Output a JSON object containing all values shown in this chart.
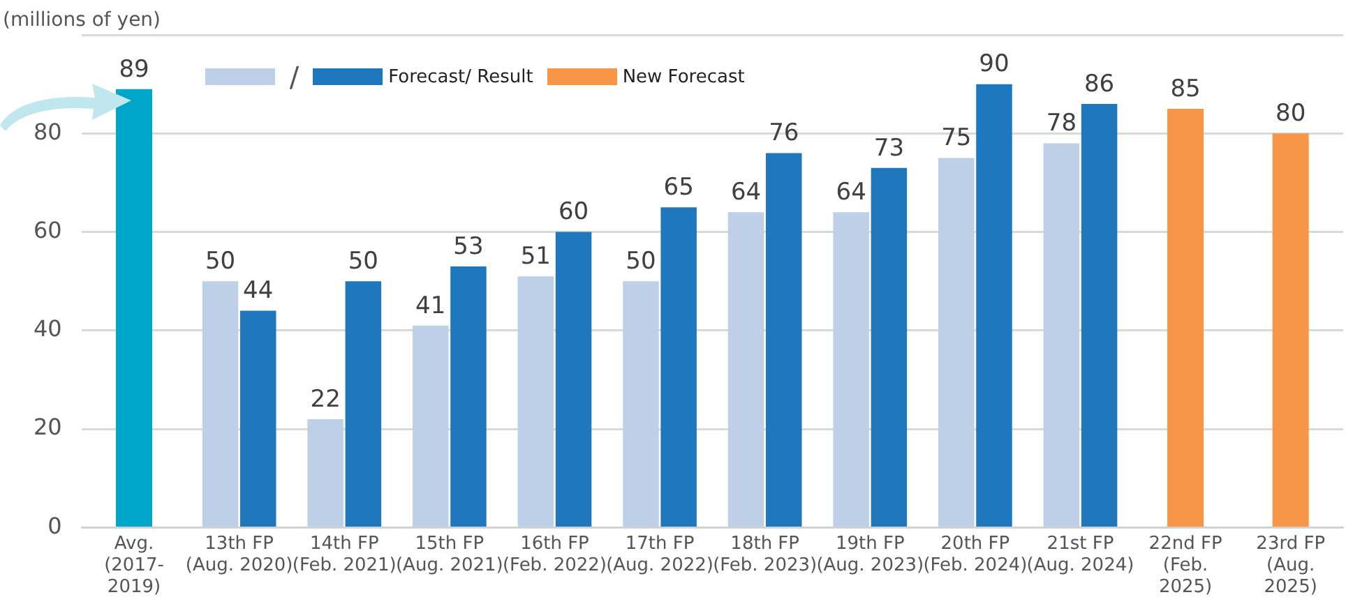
{
  "chart_data": {
    "type": "bar",
    "ylabel": "(millions of yen)",
    "categories": [
      "Avg. (2017-2019)",
      "13th FP (Aug. 2020)",
      "14th FP (Feb. 2021)",
      "15th FP (Aug. 2021)",
      "16th FP (Feb. 2022)",
      "17th FP (Aug. 2022)",
      "18th FP (Feb. 2023)",
      "19th FP (Aug. 2023)",
      "20th FP (Feb. 2024)",
      "21st FP (Aug. 2024)",
      "22nd FP (Feb. 2025)",
      "23rd FP (Aug. 2025)"
    ],
    "series": [
      {
        "color": "#00a6c8",
        "values": [
          89,
          null,
          null,
          null,
          null,
          null,
          null,
          null,
          null,
          null,
          null,
          null
        ]
      },
      {
        "color": "#bed0e8",
        "values": [
          null,
          50,
          22,
          41,
          51,
          50,
          64,
          64,
          75,
          78,
          null,
          null
        ]
      },
      {
        "name": "Forecast/ Result",
        "color": "#1f78bd",
        "values": [
          null,
          44,
          50,
          53,
          60,
          65,
          76,
          73,
          90,
          86,
          null,
          null
        ]
      },
      {
        "name": "New Forecast",
        "color": "#f79646",
        "values": [
          null,
          null,
          null,
          null,
          null,
          null,
          null,
          null,
          null,
          null,
          85,
          80
        ]
      }
    ],
    "annotations": [
      "/"
    ],
    "ylim": [
      0,
      100
    ],
    "yticks": [
      0,
      20,
      40,
      60,
      80,
      {
        "value": 100,
        "label": null
      }
    ],
    "grid": "y",
    "legend": "top left",
    "data_labels": true
  }
}
